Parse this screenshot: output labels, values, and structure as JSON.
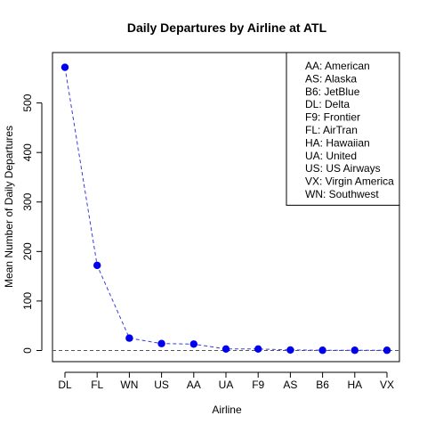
{
  "chart_data": {
    "type": "line",
    "title": "Daily Departures by Airline at ATL",
    "xlabel": "Airline",
    "ylabel": "Mean Number of Daily Departures",
    "categories": [
      "DL",
      "FL",
      "WN",
      "US",
      "AA",
      "UA",
      "F9",
      "AS",
      "B6",
      "HA",
      "VX"
    ],
    "series": [
      {
        "values": [
          572,
          172,
          25,
          14,
          13,
          3,
          3,
          1,
          0.5,
          0.5,
          0.5
        ]
      }
    ],
    "ylim": [
      0,
      580
    ],
    "yticks": [
      0,
      100,
      200,
      300,
      400,
      500
    ],
    "reference_line": 0,
    "legend_placement": "top-right",
    "legend": [
      "AA: American",
      "AS: Alaska",
      "B6: JetBlue",
      "DL: Delta",
      "F9: Frontier",
      "FL: AirTran",
      "HA: Hawaiian",
      "UA: United",
      "US: US Airways",
      "VX: Virgin America",
      "WN: Southwest"
    ],
    "colors": {
      "marker": "#0000ee",
      "line": "#3b3bdc",
      "reference": "#555555",
      "axis": "#000000"
    }
  }
}
